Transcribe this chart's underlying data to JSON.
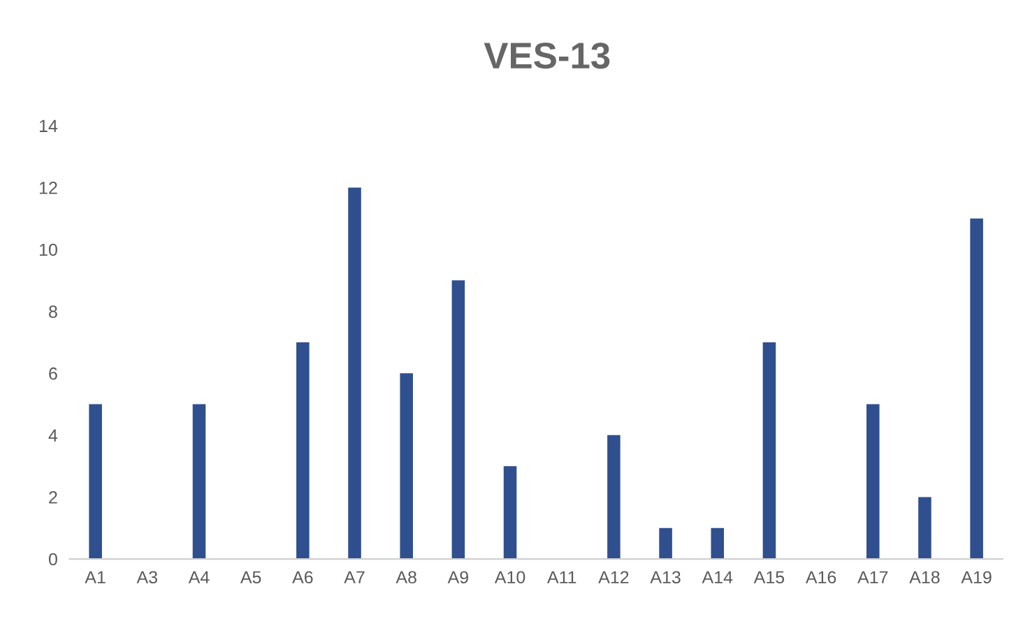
{
  "chart_data": {
    "type": "bar",
    "title": "VES-13",
    "categories": [
      "A1",
      "A3",
      "A4",
      "A5",
      "A6",
      "A7",
      "A8",
      "A9",
      "A10",
      "A11",
      "A12",
      "A13",
      "A14",
      "A15",
      "A16",
      "A17",
      "A18",
      "A19"
    ],
    "values": [
      5,
      0,
      5,
      0,
      7,
      12,
      6,
      9,
      3,
      0,
      4,
      1,
      1,
      7,
      0,
      5,
      2,
      11
    ],
    "color": "#2f4f8f",
    "ylim": [
      0,
      14
    ],
    "yticks": [
      0,
      2,
      4,
      6,
      8,
      10,
      12,
      14
    ]
  }
}
